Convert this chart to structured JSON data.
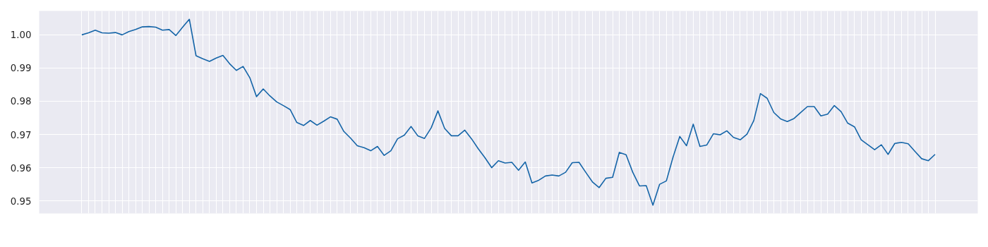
{
  "chart_data": {
    "type": "line",
    "categories": [
      null,
      null,
      null,
      null,
      null,
      null,
      null,
      null,
      null,
      null,
      null,
      null,
      null,
      null,
      null,
      null,
      null,
      null,
      null,
      null,
      null,
      null,
      null,
      null,
      null,
      null,
      null,
      null,
      null,
      null,
      null,
      null,
      null,
      null,
      null,
      null,
      null,
      null,
      null,
      null,
      null,
      null,
      null,
      null,
      null,
      null,
      null,
      null,
      null,
      null,
      null,
      null,
      null,
      null,
      null,
      null,
      null,
      null,
      null,
      null,
      null,
      null,
      null,
      null,
      null,
      null,
      null,
      null,
      null,
      null,
      null,
      null,
      null,
      null,
      null,
      null,
      null,
      null,
      null,
      null,
      null,
      null,
      null,
      null,
      null,
      null,
      null,
      null,
      null,
      null,
      null,
      null,
      null,
      null,
      null,
      null,
      null,
      null,
      null,
      null,
      null,
      null,
      null,
      null,
      null,
      null,
      null,
      null,
      null,
      null,
      null,
      null,
      null,
      null,
      null,
      null,
      null,
      null,
      null,
      null,
      null,
      null,
      null,
      null,
      null,
      null,
      null,
      null
    ],
    "series": [
      {
        "color": "#1565a8",
        "values": [
          1.0,
          1.0006,
          1.0014,
          1.0006,
          1.0005,
          1.0007,
          1.0,
          1.001,
          1.0016,
          1.0024,
          1.0025,
          1.0023,
          1.0014,
          1.0016,
          0.9998,
          1.0023,
          1.0047,
          0.9937,
          0.9928,
          0.992,
          0.993,
          0.9938,
          0.9913,
          0.9893,
          0.9905,
          0.9871,
          0.9814,
          0.9837,
          0.9816,
          0.9798,
          0.9787,
          0.9775,
          0.9736,
          0.9727,
          0.9742,
          0.9728,
          0.974,
          0.9753,
          0.9746,
          0.9709,
          0.9689,
          0.9666,
          0.966,
          0.9651,
          0.9664,
          0.9637,
          0.9651,
          0.9687,
          0.9698,
          0.9724,
          0.9696,
          0.9688,
          0.972,
          0.9771,
          0.9718,
          0.9696,
          0.9696,
          0.9713,
          0.9687,
          0.9657,
          0.963,
          0.96,
          0.9621,
          0.9614,
          0.9616,
          0.9592,
          0.9617,
          0.9554,
          0.9562,
          0.9575,
          0.9578,
          0.9575,
          0.9586,
          0.9615,
          0.9616,
          0.9586,
          0.9557,
          0.954,
          0.9568,
          0.9571,
          0.9646,
          0.9639,
          0.9586,
          0.9545,
          0.9546,
          0.9487,
          0.955,
          0.956,
          0.9632,
          0.9694,
          0.9666,
          0.9731,
          0.9664,
          0.9668,
          0.9702,
          0.9699,
          0.9711,
          0.9691,
          0.9684,
          0.9701,
          0.9741,
          0.9823,
          0.9809,
          0.9766,
          0.9747,
          0.9739,
          0.9748,
          0.9766,
          0.9784,
          0.9784,
          0.9756,
          0.9761,
          0.9787,
          0.9769,
          0.9734,
          0.9723,
          0.9684,
          0.9669,
          0.9654,
          0.9669,
          0.964,
          0.9673,
          0.9676,
          0.9672,
          0.9649,
          0.9627,
          0.9621,
          0.964
        ]
      }
    ],
    "ylim": [
      0.9462,
      1.0072
    ],
    "yticks": [
      0.95,
      0.96,
      0.97,
      0.98,
      0.99,
      {
        "value": 1.0,
        "label": "1.00"
      }
    ],
    "grid": true,
    "line_style": "solid"
  }
}
